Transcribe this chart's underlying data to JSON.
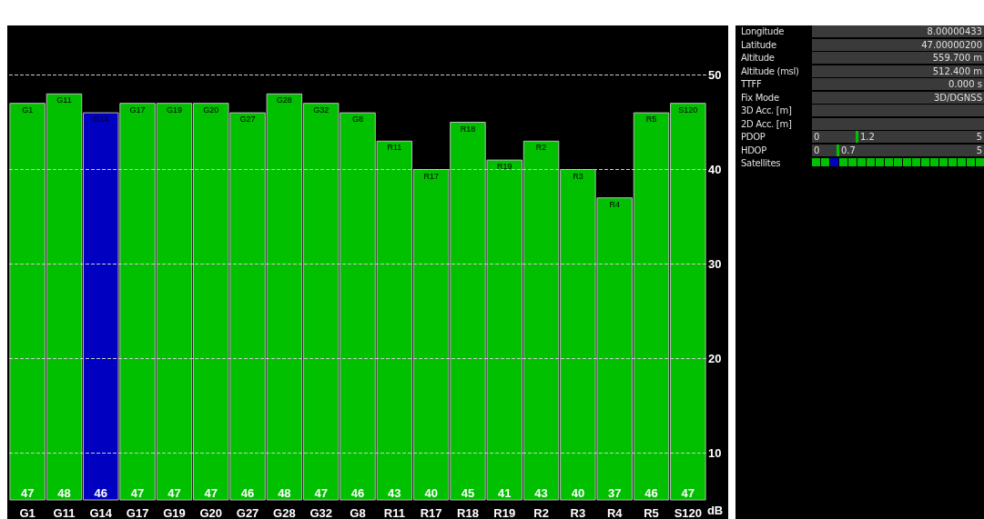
{
  "chart_data": [
    {
      "type": "bar",
      "categories": [
        "G1",
        "G11",
        "G14",
        "G17",
        "G19",
        "G20",
        "G27",
        "G28",
        "G32",
        "G8",
        "R11",
        "R17",
        "R18",
        "R19",
        "R2",
        "R3",
        "R4",
        "R5",
        "S120"
      ],
      "values": [
        47,
        48,
        46,
        47,
        47,
        47,
        46,
        48,
        47,
        46,
        43,
        40,
        45,
        41,
        43,
        40,
        37,
        46,
        47
      ],
      "colors": [
        "#00c000",
        "#00c000",
        "#0000c0",
        "#00c000",
        "#00c000",
        "#00c000",
        "#00c000",
        "#00c000",
        "#00c000",
        "#00c000",
        "#00c000",
        "#00c000",
        "#00c000",
        "#00c000",
        "#00c000",
        "#00c000",
        "#00c000",
        "#00c000",
        "#00c000"
      ],
      "xlabel": "dB",
      "ylim": [
        5,
        55
      ],
      "yticks": [
        10,
        20,
        30,
        40,
        50
      ],
      "grid": "y",
      "data_labels": true
    },
    {
      "type": "other",
      "categories": [
        "Longitude",
        "Latitude",
        "Altitude",
        "Altitude (msl)",
        "TTFF",
        "Fix Mode",
        "3D Acc. [m]",
        "2D Acc. [m]",
        "PDOP",
        "HDOP",
        "Satellites"
      ],
      "value_labels": [
        "8.00000433",
        "47.00000200",
        "559.700 m",
        "512.400 m",
        "0.000 s",
        "3D/DGNSS",
        null,
        null,
        "1.2",
        "0.7",
        null
      ],
      "annotations": [
        "0",
        "5",
        "0",
        "5"
      ]
    }
  ]
}
